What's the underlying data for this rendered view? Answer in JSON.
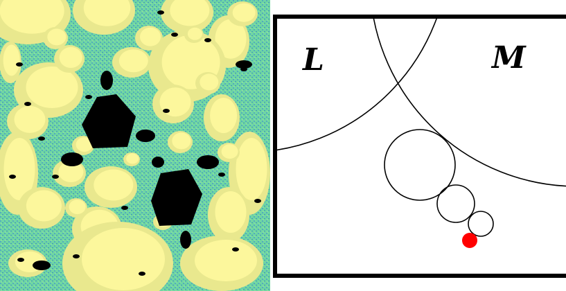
{
  "fractal_panel": {
    "colors": {
      "background": "#6fd6a3",
      "filament": "#3e8fd1",
      "basin_outer": "#e9e88e",
      "basin_inner": "#fcf79c",
      "corner_basin": "#f6e299",
      "filled_set": "#000000"
    }
  },
  "circle_panel": {
    "labels": {
      "left_region": "L",
      "right_region": "M"
    },
    "colors": {
      "frame": "#000000",
      "line": "#000000",
      "marker": "#ff0000"
    }
  }
}
